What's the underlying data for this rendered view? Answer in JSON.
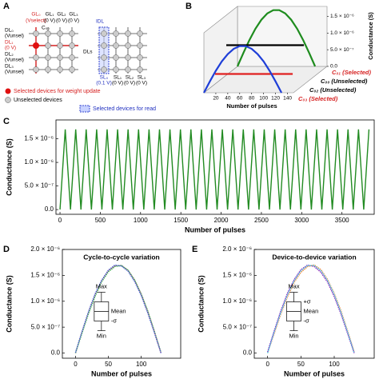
{
  "panel_labels": [
    "A",
    "B",
    "C",
    "D",
    "E"
  ],
  "diagram": {
    "gate_lines": [
      {
        "label": "GL₀",
        "voltage": "(Vselect)"
      },
      {
        "label": "GL₁",
        "voltage": "(0 V)"
      },
      {
        "label": "GL₂",
        "voltage": "(0 V)"
      },
      {
        "label": "GL₃",
        "voltage": "(0 V)"
      }
    ],
    "drain_lines": [
      {
        "label": "DL₀",
        "voltage": "(Vunsel)"
      },
      {
        "label": "DL₁",
        "voltage": "(0 V)"
      },
      {
        "label": "DL₂",
        "voltage": "(Vunsel)"
      },
      {
        "label": "DL₃",
        "voltage": "(Vunsel)"
      }
    ],
    "cell_label": "C₀₀",
    "drain_group": "DLs",
    "current": "IDL",
    "source_lines": [
      {
        "label": "SL₀",
        "voltage": "(0.1 V)"
      },
      {
        "label": "SL₁",
        "voltage": "(0 V)"
      },
      {
        "label": "SL₂",
        "voltage": "(0 V)"
      },
      {
        "label": "SL₃",
        "voltage": "(0 V)"
      }
    ],
    "legend": [
      "Selected devices for weight update",
      "Unselected devices",
      "Selected devices for read"
    ]
  },
  "chart_data": [
    {
      "type": "line3d",
      "xlabel": "Number of pulses",
      "ylabel": "Conductance (S)",
      "xlim": [
        0,
        150
      ],
      "xticks": [
        20,
        40,
        60,
        80,
        100,
        120,
        140
      ],
      "ylim": [
        0,
        1.8e-06
      ],
      "yticks": [
        {
          "value": 0,
          "label": "0.0"
        },
        {
          "value": 5e-07,
          "label": "5.0 × 10⁻⁷"
        },
        {
          "value": 1e-06,
          "label": "1.0 × 10⁻⁶"
        },
        {
          "value": 1.5e-06,
          "label": "1.5 × 10⁻⁶"
        }
      ],
      "x": [
        0,
        10,
        20,
        30,
        40,
        50,
        60,
        70,
        80,
        90,
        100,
        110,
        120,
        130
      ],
      "series": [
        {
          "name": "C₀₁ (Selected)",
          "label_color": "#d62020",
          "color": "#1e8c1e",
          "values": [
            0,
            4.07e-07,
            7.9e-07,
            1.127e-06,
            1.399e-06,
            1.59e-06,
            1.688e-06,
            1.688e-06,
            1.59e-06,
            1.399e-06,
            1.127e-06,
            7.9e-07,
            4.07e-07,
            0
          ]
        },
        {
          "name": "C₀₀ (Unselected)",
          "label_color": "#000000",
          "color": "#000000",
          "values": [
            9e-07,
            9e-07,
            9e-07,
            9e-07,
            9e-07,
            9e-07,
            9e-07,
            9e-07,
            9e-07,
            9e-07,
            9e-07,
            9e-07,
            9e-07,
            9e-07
          ]
        },
        {
          "name": "C₀₂ (Unselected)",
          "label_color": "#000000",
          "color": "#e02020",
          "values": [
            3e-07,
            3e-07,
            3e-07,
            3e-07,
            3e-07,
            3e-07,
            3e-07,
            3e-07,
            3e-07,
            3e-07,
            3e-07,
            3e-07,
            3e-07,
            3e-07
          ]
        },
        {
          "name": "C₀₃ (Selected)",
          "label_color": "#d62020",
          "color": "#1f3fd8",
          "values": [
            0,
            3.4e-07,
            6.6e-07,
            9.4e-07,
            1.16e-06,
            1.32e-06,
            1.4e-06,
            1.4e-06,
            1.32e-06,
            1.16e-06,
            9.4e-07,
            6.6e-07,
            3.4e-07,
            0
          ]
        }
      ]
    },
    {
      "type": "line",
      "xlabel": "Number of pulses",
      "ylabel": "Conductance (S)",
      "color": "#228b22",
      "xlim": [
        -50,
        3900
      ],
      "xticks": [
        0,
        500,
        1000,
        1500,
        2000,
        2500,
        3000,
        3500
      ],
      "ylim": [
        -1e-07,
        1.9e-06
      ],
      "yticks": [
        {
          "value": 0,
          "label": "0.0"
        },
        {
          "value": 5e-07,
          "label": "5.0 × 10⁻⁷"
        },
        {
          "value": 1e-06,
          "label": "1.0 × 10⁻⁶"
        },
        {
          "value": 1.5e-06,
          "label": "1.5 × 10⁻⁶"
        }
      ],
      "x": [
        0,
        65,
        130,
        195,
        260,
        325,
        390,
        455,
        520,
        585,
        650,
        715,
        780,
        845,
        910,
        975,
        1040,
        1105,
        1170,
        1235,
        1300,
        1365,
        1430,
        1495,
        1560,
        1625,
        1690,
        1755,
        1820,
        1885,
        1950,
        2015,
        2080,
        2145,
        2210,
        2275,
        2340,
        2405,
        2470,
        2535,
        2600,
        2665,
        2730,
        2795,
        2860,
        2925,
        2990,
        3055,
        3120,
        3185,
        3250,
        3315,
        3380,
        3445,
        3510,
        3575,
        3640,
        3705,
        3770,
        3835
      ],
      "values": [
        0,
        1.7e-06,
        0,
        1.7e-06,
        0,
        1.7e-06,
        0,
        1.7e-06,
        0,
        1.7e-06,
        0,
        1.7e-06,
        0,
        1.7e-06,
        0,
        1.7e-06,
        0,
        1.7e-06,
        0,
        1.7e-06,
        0,
        1.7e-06,
        0,
        1.7e-06,
        0,
        1.7e-06,
        0,
        1.7e-06,
        0,
        1.7e-06,
        0,
        1.7e-06,
        0,
        1.7e-06,
        0,
        1.7e-06,
        0,
        1.7e-06,
        0,
        1.7e-06,
        0,
        1.7e-06,
        0,
        1.7e-06,
        0,
        1.7e-06,
        0,
        1.7e-06,
        0,
        1.7e-06,
        0,
        1.7e-06,
        0,
        1.7e-06,
        0,
        1.7e-06,
        0,
        1.7e-06,
        0,
        1.7e-06
      ]
    },
    {
      "type": "line",
      "title": "Cycle-to-cycle variation",
      "xlabel": "Number of pulses",
      "ylabel": "Conductance (S)",
      "xlim": [
        -20,
        160
      ],
      "xticks": [
        0,
        50,
        100
      ],
      "ylim": [
        -1e-07,
        2e-06
      ],
      "yticks": [
        {
          "value": 0,
          "label": "0.0"
        },
        {
          "value": 5e-07,
          "label": "5.0 × 10⁻⁷"
        },
        {
          "value": 1e-06,
          "label": "1.0 × 10⁻⁶"
        },
        {
          "value": 1.5e-06,
          "label": "1.5 × 10⁻⁶"
        },
        {
          "value": 2e-06,
          "label": "2.0 × 10⁻⁶"
        }
      ],
      "annotations": {
        "max": "Max",
        "mean": "Mean",
        "minus_sigma": "-σ",
        "min": "Min"
      },
      "x": [
        0,
        10,
        20,
        30,
        40,
        50,
        60,
        70,
        80,
        90,
        100,
        110,
        120,
        130
      ],
      "series": [
        {
          "color": "#e6194b",
          "values": [
            0,
            4.07e-07,
            7.9e-07,
            1.127e-06,
            1.399e-06,
            1.59e-06,
            1.688e-06,
            1.688e-06,
            1.59e-06,
            1.399e-06,
            1.127e-06,
            7.9e-07,
            4.07e-07,
            0
          ]
        },
        {
          "color": "#3cb44b",
          "values": [
            0,
            3.9e-07,
            7.7e-07,
            1.1e-06,
            1.38e-06,
            1.57e-06,
            1.67e-06,
            1.69e-06,
            1.6e-06,
            1.41e-06,
            1.14e-06,
            8.1e-07,
            4.2e-07,
            1e-08
          ]
        },
        {
          "color": "#4363d8",
          "values": [
            1e-08,
            4.2e-07,
            8.1e-07,
            1.15e-06,
            1.41e-06,
            1.6e-06,
            1.7e-06,
            1.68e-06,
            1.58e-06,
            1.38e-06,
            1.11e-06,
            7.7e-07,
            3.9e-07,
            0
          ]
        }
      ]
    },
    {
      "type": "line",
      "title": "Device-to-device variation",
      "xlabel": "Number of pulses",
      "ylabel": "Conductance (S)",
      "xlim": [
        -20,
        160
      ],
      "xticks": [
        0,
        50,
        100
      ],
      "ylim": [
        -1e-07,
        2e-06
      ],
      "yticks": [
        {
          "value": 0,
          "label": "0.0"
        },
        {
          "value": 5e-07,
          "label": "5.0 × 10⁻⁷"
        },
        {
          "value": 1e-06,
          "label": "1.0 × 10⁻⁶"
        },
        {
          "value": 1.5e-06,
          "label": "1.5 × 10⁻⁶"
        },
        {
          "value": 2e-06,
          "label": "2.0 × 10⁻⁶"
        }
      ],
      "annotations": {
        "max": "Max",
        "plus_sigma": "+σ",
        "mean": "Mean",
        "minus_sigma": "-σ",
        "min": "Min"
      },
      "x": [
        0,
        10,
        20,
        30,
        40,
        50,
        60,
        70,
        80,
        90,
        100,
        110,
        120,
        130
      ],
      "series": [
        {
          "color": "#f58231",
          "values": [
            0,
            3.8e-07,
            7.6e-07,
            1.09e-06,
            1.37e-06,
            1.56e-06,
            1.67e-06,
            1.7e-06,
            1.61e-06,
            1.42e-06,
            1.15e-06,
            8.2e-07,
            4.3e-07,
            2e-08
          ]
        },
        {
          "color": "#911eb4",
          "values": [
            2e-08,
            4.3e-07,
            8.2e-07,
            1.16e-06,
            1.42e-06,
            1.61e-06,
            1.7e-06,
            1.67e-06,
            1.56e-06,
            1.37e-06,
            1.09e-06,
            7.6e-07,
            3.8e-07,
            0
          ]
        },
        {
          "color": "#42d4f4",
          "values": [
            0,
            4.1e-07,
            7.9e-07,
            1.13e-06,
            1.4e-06,
            1.59e-06,
            1.69e-06,
            1.69e-06,
            1.59e-06,
            1.4e-06,
            1.13e-06,
            7.9e-07,
            4.1e-07,
            0
          ]
        }
      ]
    }
  ]
}
